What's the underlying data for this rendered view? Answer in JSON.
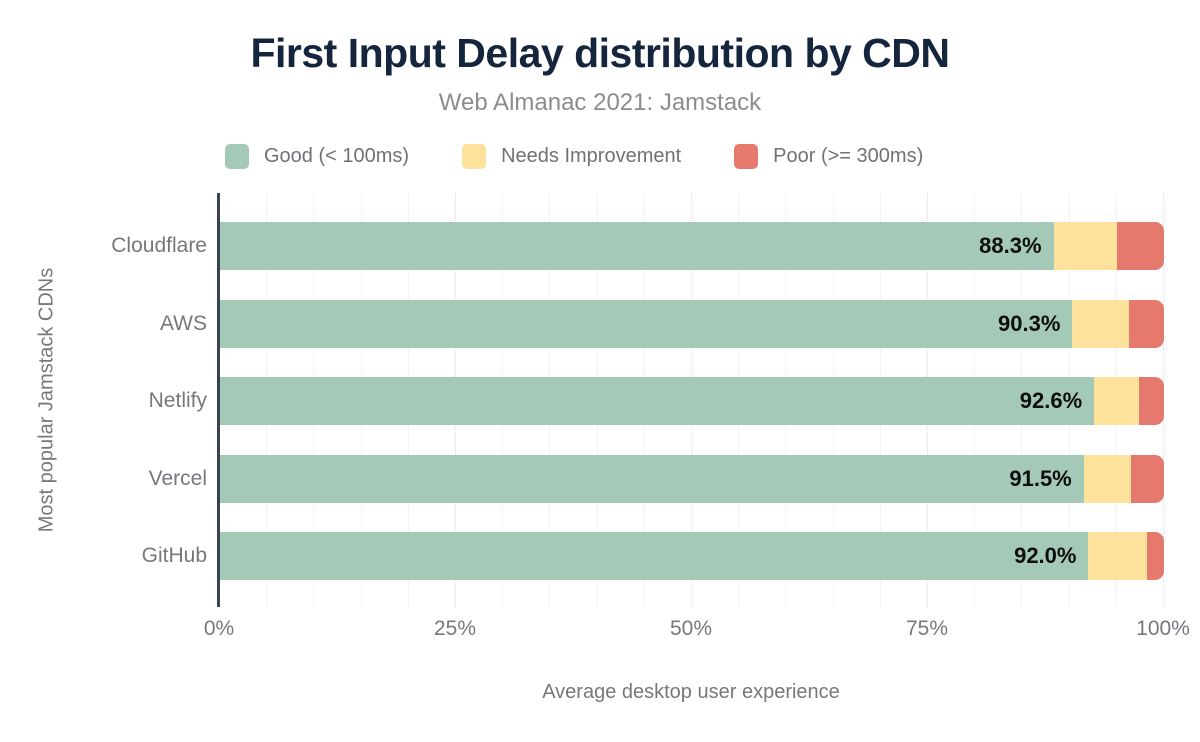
{
  "header": {
    "title": "First Input Delay distribution by CDN",
    "subtitle": "Web Almanac 2021: Jamstack"
  },
  "legend": [
    {
      "key": "good",
      "label": "Good (< 100ms)",
      "color": "#a4c9b6"
    },
    {
      "key": "needs-improvement",
      "label": "Needs Improvement",
      "color": "#fce29a"
    },
    {
      "key": "poor",
      "label": "Poor (>= 300ms)",
      "color": "#e6796e"
    }
  ],
  "chart_data": {
    "type": "bar",
    "orientation": "horizontal-stacked",
    "title": "First Input Delay distribution by CDN",
    "subtitle": "Web Almanac 2021: Jamstack",
    "categories": [
      "Cloudflare",
      "AWS",
      "Netlify",
      "Vercel",
      "GitHub"
    ],
    "series": [
      {
        "name": "Good (< 100ms)",
        "color": "#a4c9b6",
        "values": [
          88.3,
          90.3,
          92.6,
          91.5,
          92.0
        ]
      },
      {
        "name": "Needs Improvement",
        "color": "#fce29a",
        "values": [
          6.7,
          6.0,
          4.8,
          5.0,
          6.2
        ]
      },
      {
        "name": "Poor (>= 300ms)",
        "color": "#e6796e",
        "values": [
          5.0,
          3.7,
          2.6,
          3.5,
          1.8
        ]
      }
    ],
    "data_labels": [
      "88.3%",
      "90.3%",
      "92.6%",
      "91.5%",
      "92.0%"
    ],
    "xlabel": "Average desktop user experience",
    "ylabel": "Most popular Jamstack CDNs",
    "x_ticks": [
      {
        "label": "0%",
        "value": 0
      },
      {
        "label": "25%",
        "value": 25
      },
      {
        "label": "50%",
        "value": 50
      },
      {
        "label": "75%",
        "value": 75
      },
      {
        "label": "100%",
        "value": 100
      }
    ],
    "xlim": [
      0,
      100
    ],
    "minor_grid_step": 5,
    "major_grid_step": 25,
    "grid": true,
    "legend_position": "top"
  }
}
